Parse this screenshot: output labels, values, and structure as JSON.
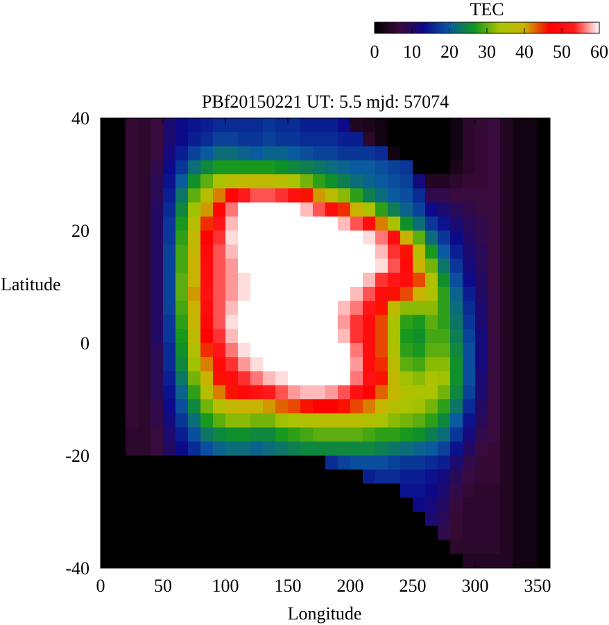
{
  "chart_data": {
    "type": "heatmap",
    "title": "PBf20150221  UT: 5.5  mjd: 57074",
    "xlabel": "Longitude",
    "ylabel": "Latitude",
    "xlim": [
      0,
      360
    ],
    "ylim": [
      -40,
      40
    ],
    "xticks": [
      "0",
      "50",
      "100",
      "150",
      "200",
      "250",
      "300",
      "350"
    ],
    "yticks": [
      "40",
      "20",
      "0",
      "-20",
      "-40"
    ],
    "colorbar": {
      "label": "TEC",
      "range": [
        0,
        60
      ],
      "ticks": [
        "0",
        "10",
        "20",
        "30",
        "40",
        "50",
        "60"
      ],
      "colors": [
        "#000000",
        "#3a0a3a",
        "#0a0a8c",
        "#0a5aa0",
        "#10961e",
        "#a8c300",
        "#c8b400",
        "#ff0000",
        "#ff1a1a",
        "#ffffff"
      ]
    },
    "grid_resolution": {
      "lon_step_deg": 10,
      "lat_step_deg": 2.5
    },
    "tec_features": [
      {
        "description_text": ""
      }
    ],
    "tec_values": [
      [
        0,
        0,
        6,
        5,
        7,
        11,
        13,
        14,
        15,
        16,
        16,
        16,
        16,
        17,
        16,
        16,
        15,
        15,
        15,
        13,
        4,
        3,
        2,
        0,
        0,
        0,
        0,
        0,
        2,
        5,
        6,
        7,
        4,
        2,
        2,
        0
      ],
      [
        0,
        0,
        6,
        5,
        7,
        11,
        13,
        15,
        16,
        18,
        18,
        17,
        17,
        18,
        17,
        17,
        16,
        16,
        16,
        15,
        15,
        5,
        2,
        0,
        0,
        0,
        0,
        0,
        2,
        5,
        6,
        7,
        4,
        2,
        2,
        0
      ],
      [
        0,
        0,
        6,
        5,
        7,
        12,
        15,
        18,
        20,
        22,
        22,
        21,
        20,
        21,
        21,
        20,
        19,
        18,
        18,
        17,
        17,
        17,
        16,
        2,
        0,
        0,
        0,
        0,
        2,
        5,
        6,
        7,
        4,
        2,
        2,
        0
      ],
      [
        0,
        0,
        6,
        5,
        8,
        13,
        17,
        22,
        25,
        27,
        27,
        27,
        27,
        27,
        26,
        25,
        24,
        23,
        22,
        21,
        20,
        20,
        19,
        18,
        17,
        0,
        0,
        0,
        3,
        5,
        6,
        7,
        4,
        2,
        2,
        0
      ],
      [
        0,
        0,
        6,
        5,
        9,
        14,
        20,
        26,
        30,
        34,
        36,
        38,
        38,
        38,
        36,
        34,
        31,
        28,
        26,
        24,
        22,
        21,
        20,
        19,
        18,
        12,
        4,
        4,
        5,
        6,
        6,
        7,
        4,
        2,
        2,
        0
      ],
      [
        0,
        0,
        6,
        5,
        9,
        15,
        23,
        30,
        36,
        42,
        48,
        53,
        55,
        55,
        54,
        51,
        46,
        41,
        37,
        32,
        28,
        24,
        22,
        20,
        19,
        16,
        8,
        8,
        7,
        7,
        7,
        7,
        4,
        2,
        2,
        0
      ],
      [
        0,
        0,
        6,
        5,
        10,
        16,
        25,
        33,
        41,
        48,
        56,
        60,
        60,
        60,
        60,
        60,
        58,
        55,
        50,
        45,
        40,
        34,
        28,
        24,
        21,
        18,
        13,
        11,
        9,
        8,
        7,
        7,
        4,
        2,
        2,
        0
      ],
      [
        0,
        0,
        6,
        5,
        10,
        17,
        27,
        36,
        45,
        52,
        58,
        60,
        60,
        60,
        60,
        60,
        60,
        60,
        60,
        58,
        55,
        50,
        42,
        34,
        26,
        22,
        17,
        14,
        11,
        9,
        8,
        7,
        4,
        2,
        2,
        0
      ],
      [
        0,
        0,
        6,
        5,
        10,
        17,
        28,
        38,
        47,
        54,
        59,
        60,
        60,
        60,
        60,
        60,
        60,
        60,
        60,
        60,
        60,
        59,
        56,
        50,
        40,
        30,
        22,
        17,
        13,
        10,
        8,
        7,
        4,
        2,
        2,
        0
      ],
      [
        0,
        0,
        6,
        5,
        10,
        18,
        29,
        39,
        49,
        55,
        58,
        60,
        60,
        60,
        60,
        60,
        60,
        60,
        60,
        60,
        60,
        60,
        58,
        54,
        46,
        36,
        27,
        20,
        15,
        11,
        9,
        7,
        4,
        2,
        2,
        0
      ],
      [
        0,
        0,
        6,
        5,
        10,
        18,
        29,
        40,
        50,
        55,
        57,
        60,
        60,
        60,
        60,
        60,
        60,
        60,
        60,
        60,
        60,
        60,
        59,
        55,
        49,
        40,
        31,
        23,
        17,
        12,
        9,
        7,
        4,
        2,
        2,
        0
      ],
      [
        0,
        0,
        6,
        5,
        10,
        18,
        30,
        40,
        50,
        55,
        57,
        59,
        60,
        60,
        60,
        60,
        60,
        60,
        60,
        60,
        60,
        58,
        54,
        52,
        50,
        44,
        35,
        26,
        19,
        13,
        10,
        7,
        4,
        2,
        2,
        0
      ],
      [
        0,
        0,
        6,
        5,
        10,
        18,
        30,
        41,
        51,
        55,
        57,
        59,
        60,
        60,
        60,
        60,
        60,
        60,
        60,
        60,
        58,
        55,
        50,
        46,
        44,
        40,
        35,
        28,
        21,
        15,
        10,
        7,
        4,
        2,
        2,
        0
      ],
      [
        0,
        0,
        6,
        5,
        10,
        18,
        29,
        40,
        50,
        55,
        58,
        60,
        60,
        60,
        60,
        60,
        60,
        60,
        60,
        58,
        56,
        52,
        46,
        38,
        32,
        32,
        32,
        28,
        22,
        16,
        11,
        7,
        4,
        2,
        2,
        0
      ],
      [
        0,
        0,
        6,
        5,
        10,
        17,
        28,
        39,
        49,
        55,
        59,
        60,
        60,
        60,
        60,
        60,
        60,
        60,
        60,
        57,
        54,
        50,
        44,
        34,
        28,
        27,
        30,
        28,
        23,
        17,
        11,
        7,
        4,
        2,
        2,
        0
      ],
      [
        0,
        0,
        6,
        5,
        10,
        17,
        27,
        37,
        47,
        54,
        58,
        60,
        60,
        60,
        60,
        60,
        60,
        60,
        60,
        58,
        54,
        50,
        44,
        34,
        27,
        26,
        29,
        29,
        24,
        18,
        12,
        7,
        4,
        2,
        2,
        0
      ],
      [
        0,
        0,
        6,
        5,
        9,
        16,
        26,
        35,
        45,
        52,
        56,
        59,
        60,
        60,
        60,
        60,
        60,
        60,
        60,
        60,
        56,
        50,
        44,
        35,
        28,
        27,
        30,
        30,
        25,
        19,
        12,
        7,
        4,
        2,
        2,
        0
      ],
      [
        0,
        0,
        6,
        5,
        9,
        16,
        25,
        33,
        42,
        49,
        54,
        57,
        59,
        60,
        60,
        60,
        60,
        60,
        60,
        60,
        57,
        50,
        45,
        37,
        30,
        29,
        32,
        32,
        26,
        19,
        12,
        7,
        4,
        2,
        2,
        0
      ],
      [
        0,
        0,
        6,
        5,
        9,
        15,
        23,
        31,
        40,
        46,
        50,
        54,
        56,
        58,
        59,
        60,
        60,
        60,
        60,
        60,
        56,
        51,
        46,
        39,
        33,
        32,
        34,
        33,
        26,
        19,
        11,
        7,
        4,
        2,
        2,
        0
      ],
      [
        0,
        0,
        6,
        5,
        9,
        14,
        21,
        28,
        36,
        42,
        46,
        49,
        51,
        53,
        55,
        57,
        58,
        58,
        57,
        55,
        51,
        47,
        43,
        39,
        35,
        34,
        34,
        31,
        25,
        18,
        11,
        7,
        4,
        2,
        2,
        0
      ],
      [
        0,
        0,
        6,
        5,
        8,
        13,
        19,
        25,
        31,
        36,
        39,
        40,
        40,
        41,
        43,
        44,
        46,
        47,
        47,
        46,
        44,
        42,
        39,
        36,
        34,
        33,
        31,
        28,
        23,
        16,
        10,
        7,
        4,
        2,
        2,
        0
      ],
      [
        0,
        0,
        6,
        5,
        8,
        12,
        17,
        22,
        27,
        30,
        32,
        32,
        31,
        31,
        33,
        34,
        35,
        36,
        36,
        36,
        36,
        35,
        34,
        32,
        31,
        30,
        28,
        25,
        20,
        14,
        9,
        7,
        4,
        2,
        2,
        0
      ],
      [
        0,
        0,
        5,
        5,
        7,
        11,
        15,
        19,
        23,
        25,
        26,
        26,
        25,
        25,
        27,
        28,
        29,
        30,
        30,
        30,
        30,
        29,
        28,
        28,
        27,
        26,
        24,
        22,
        17,
        12,
        8,
        7,
        4,
        2,
        2,
        0
      ],
      [
        0,
        0,
        5,
        5,
        7,
        10,
        13,
        16,
        19,
        21,
        22,
        22,
        21,
        22,
        23,
        24,
        25,
        25,
        25,
        25,
        25,
        25,
        24,
        23,
        22,
        21,
        20,
        18,
        14,
        10,
        7,
        6,
        4,
        2,
        2,
        0
      ],
      [
        0,
        0,
        0,
        0,
        0,
        0,
        0,
        0,
        0,
        0,
        0,
        0,
        0,
        0,
        0,
        0,
        0,
        0,
        16,
        18,
        19,
        19,
        19,
        18,
        17,
        17,
        16,
        15,
        11,
        8,
        6,
        6,
        4,
        2,
        2,
        0
      ],
      [
        0,
        0,
        0,
        0,
        0,
        0,
        0,
        0,
        0,
        0,
        0,
        0,
        0,
        0,
        0,
        0,
        0,
        0,
        0,
        0,
        0,
        15,
        16,
        16,
        15,
        15,
        14,
        12,
        9,
        7,
        6,
        6,
        4,
        2,
        2,
        0
      ],
      [
        0,
        0,
        0,
        0,
        0,
        0,
        0,
        0,
        0,
        0,
        0,
        0,
        0,
        0,
        0,
        0,
        0,
        0,
        0,
        0,
        0,
        0,
        0,
        0,
        14,
        14,
        13,
        11,
        8,
        6,
        5,
        5,
        4,
        2,
        2,
        0
      ],
      [
        0,
        0,
        0,
        0,
        0,
        0,
        0,
        0,
        0,
        0,
        0,
        0,
        0,
        0,
        0,
        0,
        0,
        0,
        0,
        0,
        0,
        0,
        0,
        0,
        0,
        13,
        12,
        10,
        7,
        5,
        5,
        5,
        4,
        2,
        2,
        0
      ],
      [
        0,
        0,
        0,
        0,
        0,
        0,
        0,
        0,
        0,
        0,
        0,
        0,
        0,
        0,
        0,
        0,
        0,
        0,
        0,
        0,
        0,
        0,
        0,
        0,
        0,
        0,
        11,
        9,
        6,
        5,
        5,
        5,
        4,
        2,
        2,
        0
      ],
      [
        0,
        0,
        0,
        0,
        0,
        0,
        0,
        0,
        0,
        0,
        0,
        0,
        0,
        0,
        0,
        0,
        0,
        0,
        0,
        0,
        0,
        0,
        0,
        0,
        0,
        0,
        0,
        8,
        6,
        5,
        5,
        5,
        4,
        2,
        2,
        0
      ],
      [
        0,
        0,
        0,
        0,
        0,
        0,
        0,
        0,
        0,
        0,
        0,
        0,
        0,
        0,
        0,
        0,
        0,
        0,
        0,
        0,
        0,
        0,
        0,
        0,
        0,
        0,
        0,
        0,
        5,
        5,
        5,
        5,
        4,
        2,
        2,
        0
      ],
      [
        0,
        0,
        0,
        0,
        0,
        0,
        0,
        0,
        0,
        0,
        0,
        0,
        0,
        0,
        0,
        0,
        0,
        0,
        0,
        0,
        0,
        0,
        0,
        0,
        0,
        0,
        0,
        0,
        0,
        4,
        4,
        4,
        4,
        2,
        2,
        0
      ]
    ]
  }
}
